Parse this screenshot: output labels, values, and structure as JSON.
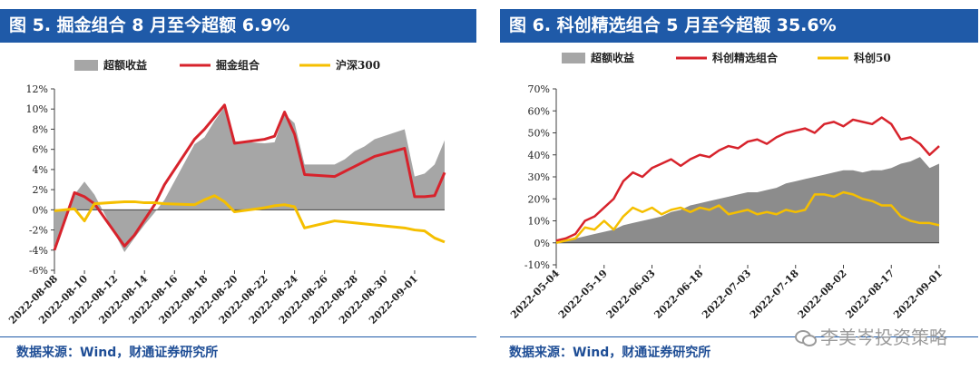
{
  "colors": {
    "title_bg": "#1f5aa8",
    "excess": "#a6a6a6",
    "excess_dark": "#8c8c8c",
    "portfolio": "#d7232c",
    "index": "#f5bf00",
    "axis": "#404040",
    "source": "#1f4e96"
  },
  "watermark": "李美岑投资策略",
  "chart_data": [
    {
      "type": "line",
      "title": "图 5. 掘金组合 8 月至今超额 6.9%",
      "source": "数据来源：Wind，财通证券研究所",
      "legend": [
        "超额收益",
        "掘金组合",
        "沪深300"
      ],
      "ylim": [
        -6,
        12
      ],
      "ytick_labels": [
        "12%",
        "10%",
        "8%",
        "6%",
        "4%",
        "2%",
        "0%",
        "-2%",
        "-4%",
        "-6%"
      ],
      "yticks": [
        12,
        10,
        8,
        6,
        4,
        2,
        0,
        -2,
        -4,
        -6
      ],
      "xtick_labels": [
        "2022-08-08",
        "2022-08-10",
        "2022-08-12",
        "2022-08-14",
        "2022-08-16",
        "2022-08-18",
        "2022-08-20",
        "2022-08-22",
        "2022-08-24",
        "2022-08-26",
        "2022-08-28",
        "2022-08-30",
        "2022-09-01"
      ],
      "x": [
        0,
        2,
        3,
        4,
        7,
        8,
        9,
        10,
        11,
        14,
        15,
        16,
        17,
        18,
        21,
        22,
        23,
        24,
        25,
        28,
        29,
        30,
        31,
        32,
        35,
        36,
        37,
        38,
        39
      ],
      "x_domain": [
        0,
        39
      ],
      "xtick_values": [
        0,
        3,
        6,
        9,
        12,
        15,
        18,
        21,
        24,
        27,
        30,
        33,
        36
      ],
      "series": [
        {
          "name": "超额收益",
          "kind": "area",
          "values": [
            -4.1,
            1.5,
            2.8,
            1.5,
            -4.2,
            -2.8,
            -1.5,
            -0.3,
            1.0,
            6.5,
            7.2,
            8.8,
            10.2,
            6.8,
            6.6,
            6.7,
            9.5,
            8.6,
            4.5,
            4.5,
            5.0,
            5.8,
            6.3,
            7.0,
            8.0,
            3.3,
            3.6,
            4.5,
            6.9
          ]
        },
        {
          "name": "掘金组合",
          "kind": "line",
          "values": [
            -4.0,
            1.7,
            1.3,
            0.6,
            -3.6,
            -2.5,
            -1.0,
            0.5,
            2.5,
            7.0,
            8.0,
            9.2,
            10.4,
            6.6,
            7.0,
            7.3,
            9.7,
            7.5,
            3.5,
            3.3,
            3.8,
            4.3,
            4.8,
            5.3,
            6.1,
            1.3,
            1.3,
            1.4,
            3.7
          ]
        },
        {
          "name": "沪深300",
          "kind": "line",
          "values": [
            -0.1,
            0.1,
            -1.1,
            0.6,
            0.8,
            0.8,
            0.7,
            0.7,
            0.6,
            0.5,
            1.0,
            1.4,
            0.8,
            -0.2,
            0.2,
            0.4,
            0.5,
            0.3,
            -1.8,
            -1.1,
            -1.2,
            -1.3,
            -1.4,
            -1.5,
            -1.8,
            -2.0,
            -2.1,
            -2.8,
            -3.2
          ]
        }
      ]
    },
    {
      "type": "line",
      "title": "图 6. 科创精选组合 5 月至今超额 35.6%",
      "source": "数据来源：Wind，财通证券研究所",
      "legend": [
        "超额收益",
        "科创精选组合",
        "科创50"
      ],
      "ylim": [
        -10,
        70
      ],
      "ytick_labels": [
        "70%",
        "60%",
        "50%",
        "40%",
        "30%",
        "20%",
        "10%",
        "0%",
        "-10%"
      ],
      "yticks": [
        70,
        60,
        50,
        40,
        30,
        20,
        10,
        0,
        -10
      ],
      "xtick_labels": [
        "2022-05-04",
        "2022-05-19",
        "2022-06-03",
        "2022-06-18",
        "2022-07-03",
        "2022-07-18",
        "2022-08-02",
        "2022-08-17",
        "2022-09-01"
      ],
      "x": [
        0,
        3,
        6,
        9,
        12,
        15,
        18,
        21,
        24,
        27,
        30,
        33,
        36,
        39,
        42,
        45,
        48,
        51,
        54,
        57,
        60,
        63,
        66,
        69,
        72,
        75,
        78,
        81,
        84,
        87,
        90,
        93,
        96,
        99,
        102,
        105,
        108,
        111,
        114,
        117,
        120
      ],
      "x_domain": [
        0,
        120
      ],
      "xtick_values": [
        0,
        15,
        30,
        45,
        60,
        75,
        90,
        105,
        120
      ],
      "series": [
        {
          "name": "超额收益",
          "kind": "area",
          "values": [
            0.5,
            1,
            2,
            3,
            4,
            5,
            6,
            8,
            9,
            10,
            11,
            12,
            14,
            15,
            17,
            18,
            19,
            20,
            21,
            22,
            23,
            23,
            24,
            25,
            27,
            28,
            29,
            30,
            31,
            32,
            33,
            33,
            32,
            33,
            33,
            34,
            36,
            37,
            39,
            34,
            36
          ]
        },
        {
          "name": "科创精选组合",
          "kind": "line",
          "values": [
            1,
            2,
            4,
            10,
            12,
            16,
            20,
            28,
            32,
            30,
            34,
            36,
            38,
            35,
            38,
            40,
            39,
            42,
            44,
            43,
            46,
            47,
            45,
            48,
            50,
            51,
            52,
            50,
            54,
            55,
            53,
            56,
            55,
            54,
            57,
            54,
            47,
            48,
            45,
            40,
            44
          ]
        },
        {
          "name": "科创50",
          "kind": "line",
          "values": [
            0,
            1,
            2,
            7,
            6,
            10,
            6,
            12,
            16,
            14,
            16,
            13,
            15,
            16,
            14,
            16,
            15,
            17,
            13,
            14,
            15,
            13,
            14,
            13,
            15,
            14,
            15,
            22,
            22,
            21,
            23,
            22,
            20,
            19,
            17,
            17,
            12,
            10,
            9,
            9,
            8
          ]
        }
      ]
    }
  ]
}
